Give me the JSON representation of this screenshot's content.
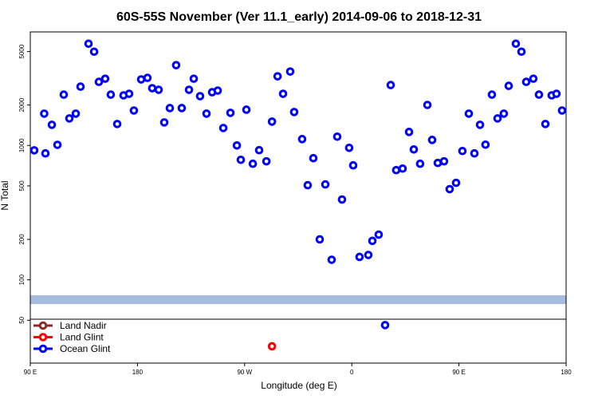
{
  "chart_data": {
    "type": "scatter",
    "title": "60S-55S November (Ver 11.1_early)   2014-09-06 to 2018-12-31",
    "xlabel": "Longitude (deg E)",
    "ylabel": "N Total",
    "log_y": true,
    "legend": "lower left",
    "xlim": [
      90,
      540
    ],
    "xticks": [
      {
        "value": 90,
        "label": "90 E"
      },
      180,
      {
        "value": 270,
        "label": "90 W"
      },
      {
        "value": 360,
        "label": "0"
      },
      {
        "value": 450,
        "label": "90 E"
      },
      {
        "value": 540,
        "label": "180"
      }
    ],
    "ylim": [
      24,
      7000
    ],
    "yticks": [
      50,
      100,
      200,
      500,
      1000,
      2000,
      5000
    ],
    "series": [
      {
        "name": "Land Nadir",
        "color": "#8b2a2a",
        "x": [],
        "values": []
      },
      {
        "name": "Land Glint",
        "color": "#ff0000",
        "x": [
          293.0
        ],
        "values": [
          32
        ]
      },
      {
        "name": "Ocean Glint",
        "color": "#0000ff",
        "x": [
          93.3,
          101.7,
          102.7,
          108.1,
          112.8,
          118.1,
          122.8,
          128.2,
          132.2,
          138.9,
          143.6,
          147.6,
          152.9,
          157.6,
          163.0,
          168.3,
          173.0,
          177.0,
          183.1,
          188.4,
          192.4,
          197.8,
          202.5,
          207.2,
          212.5,
          217.2,
          223.3,
          227.3,
          232.6,
          238.0,
          242.7,
          247.4,
          252.1,
          258.1,
          263.5,
          266.8,
          271.5,
          276.9,
          282.2,
          288.3,
          293.0,
          297.7,
          302.3,
          308.3,
          311.6,
          318.3,
          323.0,
          327.7,
          333.1,
          337.8,
          343.1,
          347.8,
          351.8,
          357.8,
          361.2,
          366.5,
          373.9,
          377.3,
          382.6,
          388.0,
          392.7,
          397.3,
          402.7,
          408.1,
          412.1,
          417.4,
          423.5,
          427.5,
          432.2,
          437.5,
          442.2,
          447.6,
          452.9,
          458.3,
          463.0,
          467.7,
          472.3,
          477.7,
          482.4,
          487.7,
          491.8,
          497.8,
          502.5,
          506.5,
          512.5,
          517.2,
          522.6,
          527.9,
          531.9,
          536.6
        ],
        "values": [
          920,
          1725,
          873,
          1425,
          1010,
          2390,
          1589,
          1725,
          2740,
          5720,
          4990,
          2975,
          3140,
          2390,
          1445,
          2360,
          2425,
          1820,
          3100,
          3185,
          2667,
          2595,
          1485,
          1897,
          3960,
          1897,
          2595,
          3140,
          2327,
          1725,
          2490,
          2560,
          1349,
          1749,
          1000,
          782,
          1846,
          731,
          922,
          762,
          1505,
          3270,
          2425,
          3550,
          1773,
          1115,
          506,
          804,
          200,
          513,
          141,
          1162,
          396,
          960,
          711,
          148,
          153,
          195,
          217,
          46,
          2815,
          655,
          673,
          1261,
          934,
          731,
          2003,
          1100,
          741,
          762,
          473,
          527,
          909,
          1725,
          873,
          1425,
          1014,
          2390,
          1589,
          1725,
          2777,
          5720,
          4990,
          2975,
          3140,
          2390,
          1445,
          2360,
          2425,
          1820
        ]
      }
    ]
  }
}
